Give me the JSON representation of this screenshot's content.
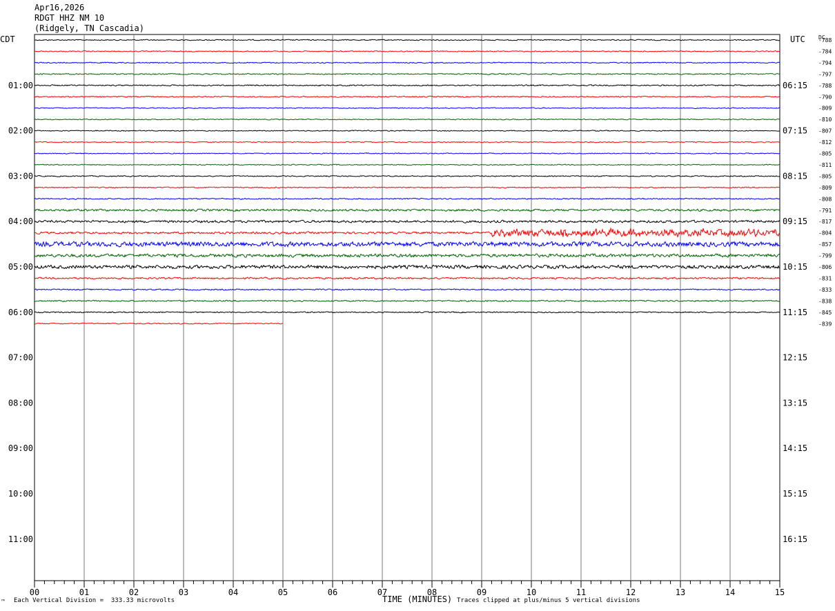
{
  "header": {
    "date": "Apr16,2026",
    "station": "RDGT HHZ NM 10",
    "location": "(Ridgely, TN Cascadia)"
  },
  "labels": {
    "left_tz": "CDT",
    "right_tz": "UTC",
    "dc": "DC",
    "xlabel": "TIME (MINUTES)",
    "scale_note": "Each Vertical Division =  333.33 microvolts",
    "clip_note": "Traces clipped at plus/minus 5 vertical divisions",
    "corner_mark": "™"
  },
  "chart_data": {
    "type": "line",
    "title": "RDGT HHZ NM 10",
    "xlabel": "TIME (MINUTES)",
    "xlim": [
      0,
      15
    ],
    "x_ticks": [
      "00",
      "01",
      "02",
      "03",
      "04",
      "05",
      "06",
      "07",
      "08",
      "09",
      "10",
      "11",
      "12",
      "13",
      "14",
      "15"
    ],
    "left_hour_labels": [
      "01:00",
      "02:00",
      "03:00",
      "04:00",
      "05:00",
      "06:00",
      "07:00",
      "08:00",
      "09:00",
      "10:00",
      "11:00"
    ],
    "right_hour_labels": [
      "06:15",
      "07:15",
      "08:15",
      "09:15",
      "10:15",
      "11:15",
      "12:15",
      "13:15",
      "14:15",
      "15:15",
      "16:15"
    ],
    "trace_colors": [
      "#000000",
      "#ff0000",
      "#0000ff",
      "#006400"
    ],
    "traces": [
      {
        "dc": "-788",
        "amp": 1.0
      },
      {
        "dc": "-784",
        "amp": 1.0
      },
      {
        "dc": "-794",
        "amp": 1.0
      },
      {
        "dc": "-797",
        "amp": 1.1
      },
      {
        "dc": "-788",
        "amp": 1.2
      },
      {
        "dc": "-790",
        "amp": 1.1
      },
      {
        "dc": "-809",
        "amp": 0.9
      },
      {
        "dc": "-810",
        "amp": 0.9
      },
      {
        "dc": "-807",
        "amp": 0.9
      },
      {
        "dc": "-812",
        "amp": 0.9
      },
      {
        "dc": "-805",
        "amp": 0.9
      },
      {
        "dc": "-811",
        "amp": 0.9
      },
      {
        "dc": "-805",
        "amp": 1.0
      },
      {
        "dc": "-809",
        "amp": 1.0
      },
      {
        "dc": "-808",
        "amp": 1.1
      },
      {
        "dc": "-791",
        "amp": 2.0
      },
      {
        "dc": "-817",
        "amp": 2.2
      },
      {
        "dc": "-804",
        "amp": 2.0,
        "burst_from": 9.2,
        "burst_amp": 10
      },
      {
        "dc": "-857",
        "amp": 4.5
      },
      {
        "dc": "-799",
        "amp": 3.0
      },
      {
        "dc": "-806",
        "amp": 3.2
      },
      {
        "dc": "-831",
        "amp": 1.6
      },
      {
        "dc": "-833",
        "amp": 1.2
      },
      {
        "dc": "-838",
        "amp": 1.3
      },
      {
        "dc": "-845",
        "amp": 1.1
      },
      {
        "dc": "-839",
        "amp": 1.0,
        "end_minute": 5
      }
    ]
  }
}
